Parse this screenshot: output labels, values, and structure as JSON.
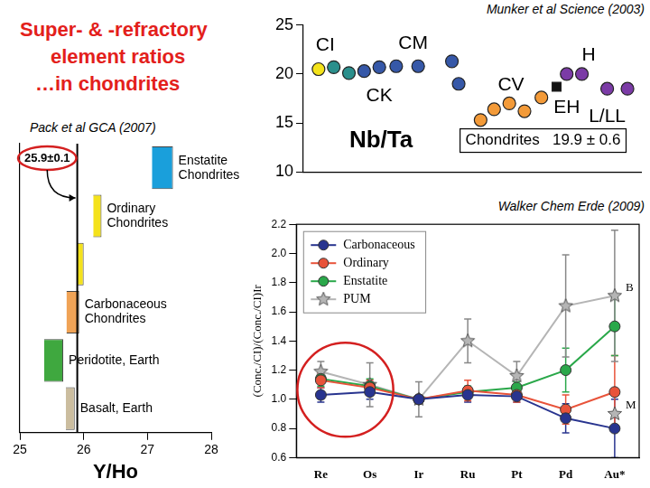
{
  "slide": {
    "title": [
      "Super- & -refractory",
      "element ratios",
      "…in chondrites"
    ]
  },
  "chart_data": [
    {
      "type": "scatter",
      "subtitle": "Munker et al Science (2003)",
      "xlim": [
        0,
        20
      ],
      "ylim": [
        10,
        25
      ],
      "yticks": [
        10,
        15,
        20,
        25
      ],
      "tick_labels": "y",
      "grid": false,
      "series": [
        {
          "color": "#f4e31a",
          "marker": "circle",
          "x": [
            0.9
          ],
          "values": [
            20.5
          ]
        },
        {
          "color": "#2b8f8c",
          "marker": "circle",
          "x": [
            1.8,
            2.7
          ],
          "values": [
            20.7,
            20.1
          ]
        },
        {
          "color": "#3658a8",
          "marker": "circle",
          "x": [
            3.6,
            4.5,
            5.5,
            6.8,
            8.8,
            9.2
          ],
          "values": [
            20.3,
            20.7,
            20.8,
            20.8,
            21.3,
            19.0
          ]
        },
        {
          "color": "#f39a38",
          "marker": "circle",
          "x": [
            10.5,
            11.3,
            12.2,
            13.1,
            14.1
          ],
          "values": [
            15.3,
            16.4,
            17.0,
            16.2,
            17.6
          ]
        },
        {
          "color": "#111111",
          "marker": "square",
          "x": [
            15.0
          ],
          "values": [
            18.7
          ]
        },
        {
          "color": "#7b3ba6",
          "marker": "circle",
          "x": [
            15.6,
            16.5,
            18.0,
            19.2
          ],
          "values": [
            20.0,
            20.0,
            18.5,
            18.5
          ]
        }
      ],
      "annotations": [
        {
          "text": "CI",
          "x": 1.3,
          "y": 22.9
        },
        {
          "text": "CM",
          "x": 6.5,
          "y": 23.1
        },
        {
          "text": "CK",
          "x": 4.5,
          "y": 17.8
        },
        {
          "text": "CV",
          "x": 12.3,
          "y": 18.9
        },
        {
          "text": "H",
          "x": 16.9,
          "y": 21.9
        },
        {
          "text": "EH",
          "x": 15.6,
          "y": 16.6
        },
        {
          "text": "L/LL",
          "x": 18.0,
          "y": 15.6
        },
        {
          "text": "Nb/Ta",
          "x": 4.6,
          "y": 13.2
        },
        {
          "text": "Chondrites   19.9 ± 0.6",
          "x": 14.2,
          "y": 13.2
        }
      ]
    },
    {
      "type": "bar",
      "orientation": "horizontal",
      "subtitle": "Pack et al GCA (2007)",
      "categories": [
        "Enstatite\nChondrites",
        "Ordinary\nChondrites",
        null,
        "Carbonaceous\nChondrites",
        "Peridotite, Earth",
        "Basalt, Earth"
      ],
      "values": [
        [
          27.07,
          27.4
        ],
        [
          26.15,
          26.28
        ],
        [
          25.9,
          26.0
        ],
        [
          25.73,
          25.93
        ],
        [
          25.38,
          25.68
        ],
        [
          25.72,
          25.86
        ]
      ],
      "colors": [
        "#1a9fdb",
        "#f4e21c",
        "#f4e21c",
        "#f0a356",
        "#3fa83f",
        "#cbbd9f"
      ],
      "xlim": [
        25,
        28
      ],
      "xticks": [
        25,
        26,
        27,
        28
      ],
      "xlabel": "Y/Ho",
      "tick_labels": "x",
      "grid": false,
      "annotations": [
        {
          "text": "25.9±0.1",
          "x": 25.9
        }
      ]
    },
    {
      "type": "line",
      "subtitle": "Walker Chem Erde (2009)",
      "categories": [
        "Re",
        "Os",
        "Ir",
        "Ru",
        "Pt",
        "Pd",
        "Au*"
      ],
      "ylabel": "(Conc./CI)/(Conc./CI)Ir",
      "ylim": [
        0.6,
        2.2
      ],
      "yticks": [
        0.6,
        0.8,
        {
          "value": 1,
          "label": "1.0"
        },
        1.2,
        1.4,
        1.6,
        1.8,
        {
          "value": 2,
          "label": "2.0"
        },
        2.2
      ],
      "grid": false,
      "legend": "upper left",
      "series": [
        {
          "name": "Carbonaceous",
          "color": "#28348f",
          "marker": "circle",
          "values": [
            1.03,
            1.05,
            1.0,
            1.03,
            1.02,
            0.87,
            0.8
          ],
          "errors": [
            0.05,
            0.05,
            null,
            0.05,
            0.04,
            0.1,
            0.2
          ]
        },
        {
          "name": "Ordinary",
          "color": "#e8533a",
          "marker": "circle",
          "values": [
            1.13,
            1.08,
            1.0,
            1.06,
            1.03,
            0.93,
            1.05
          ],
          "errors": [
            0.05,
            0.05,
            null,
            0.07,
            0.05,
            0.1,
            0.25
          ]
        },
        {
          "name": "Enstatite",
          "color": "#2aa84a",
          "marker": "circle",
          "values": [
            1.14,
            1.09,
            1.0,
            1.05,
            1.08,
            1.2,
            1.5
          ],
          "errors": [
            0.05,
            0.05,
            null,
            0.04,
            0.04,
            0.15,
            0.2
          ]
        },
        {
          "name": "PUM",
          "color": "#b5b5b5",
          "marker": "star",
          "values": [
            1.19,
            1.1,
            1.0,
            1.4,
            1.16,
            1.64,
            1.71
          ],
          "errors": [
            0.07,
            0.15,
            0.12,
            0.15,
            0.1,
            0.35,
            0.45
          ]
        },
        {
          "color": "#b5b5b5",
          "marker": "star",
          "values": [
            null,
            null,
            null,
            null,
            null,
            null,
            0.9
          ]
        }
      ],
      "annotations": [
        {
          "text": "B",
          "x": "Au*",
          "y": 1.71
        },
        {
          "text": "M",
          "x": "Au*",
          "y": 0.9
        }
      ]
    }
  ]
}
